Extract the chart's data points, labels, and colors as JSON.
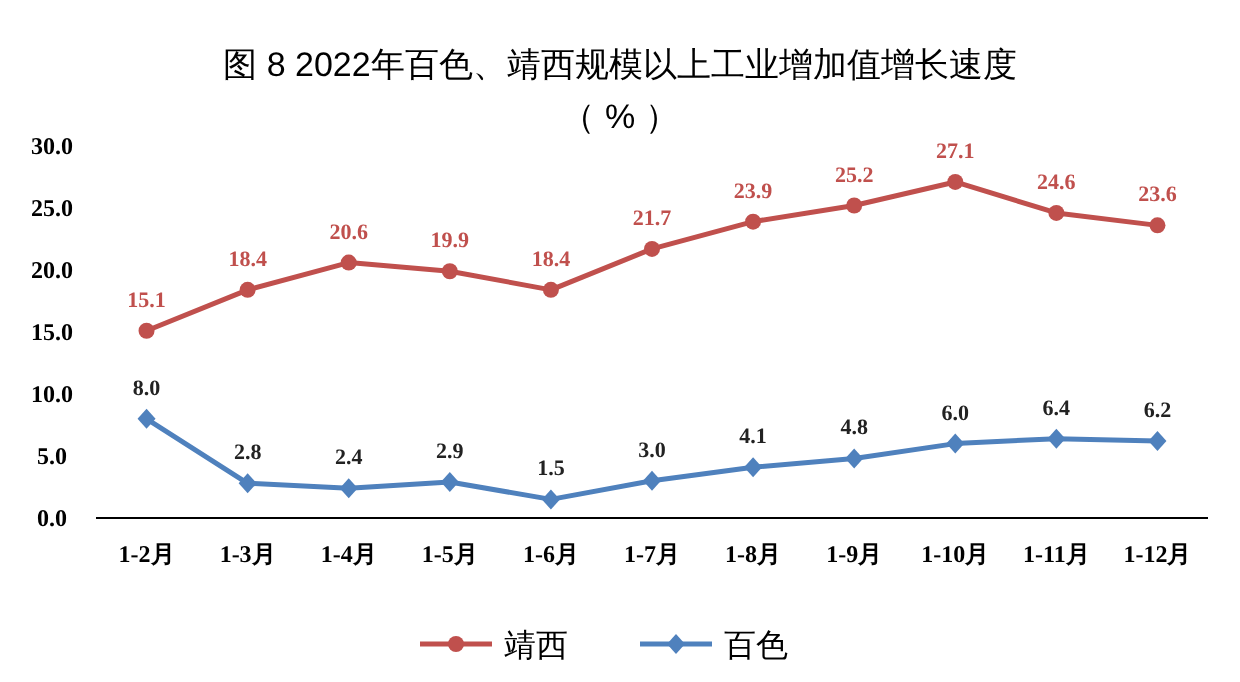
{
  "chart_data": {
    "type": "line",
    "title": "图 8  2022年百色、靖西规模以上工业增加值增长速度",
    "subtitle": "（ % ）",
    "categories": [
      "1-2月",
      "1-3月",
      "1-4月",
      "1-5月",
      "1-6月",
      "1-7月",
      "1-8月",
      "1-9月",
      "1-10月",
      "1-11月",
      "1-12月"
    ],
    "series": [
      {
        "name": "靖西",
        "color": "#c0504d",
        "marker": "circle",
        "values": [
          15.1,
          18.4,
          20.6,
          19.9,
          18.4,
          21.7,
          23.9,
          25.2,
          27.1,
          24.6,
          23.6
        ],
        "value_labels": [
          "15.1",
          "18.4",
          "20.6",
          "19.9",
          "18.4",
          "21.7",
          "23.9",
          "25.2",
          "27.1",
          "24.6",
          "23.6"
        ]
      },
      {
        "name": "百色",
        "color": "#4f81bd",
        "marker": "diamond",
        "values": [
          8.0,
          2.8,
          2.4,
          2.9,
          1.5,
          3.0,
          4.1,
          4.8,
          6.0,
          6.4,
          6.2
        ],
        "value_labels": [
          "8.0",
          "2.8",
          "2.4",
          "2.9",
          "1.5",
          "3.0",
          "4.1",
          "4.8",
          "6.0",
          "6.4",
          "6.2"
        ]
      }
    ],
    "ylim": [
      0,
      30
    ],
    "yticks": [
      {
        "value": 0,
        "label": "0.0"
      },
      {
        "value": 5,
        "label": "5.0"
      },
      {
        "value": 10,
        "label": "10.0"
      },
      {
        "value": 15,
        "label": "15.0"
      },
      {
        "value": 20,
        "label": "20.0"
      },
      {
        "value": 25,
        "label": "25.0"
      },
      {
        "value": 30,
        "label": "30.0"
      }
    ],
    "legend": "bottom",
    "grid": false
  }
}
